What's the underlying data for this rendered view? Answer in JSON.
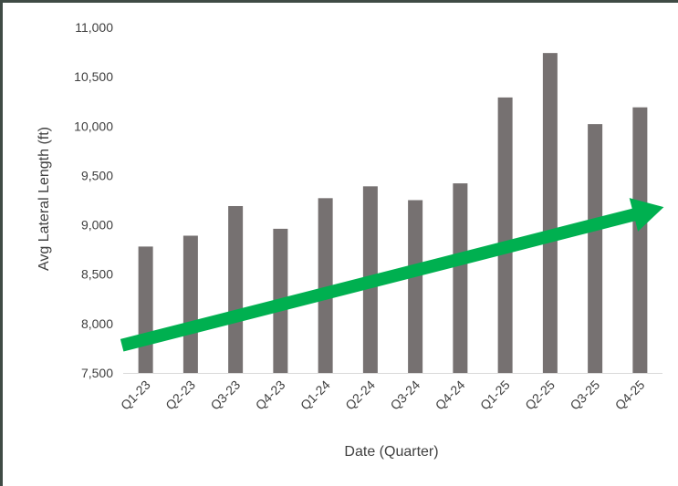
{
  "chart_data": {
    "type": "bar",
    "categories": [
      "Q1-23",
      "Q2-23",
      "Q3-23",
      "Q4-23",
      "Q1-24",
      "Q2-24",
      "Q3-24",
      "Q4-24",
      "Q1-25",
      "Q2-25",
      "Q3-25",
      "Q4-25"
    ],
    "values": [
      8780,
      8890,
      9190,
      8960,
      9270,
      9390,
      9250,
      9420,
      10290,
      10740,
      10020,
      10190
    ],
    "xlabel": "Date (Quarter)",
    "ylabel": "Avg Lateral Length (ft)",
    "ylim": [
      7500,
      11000
    ],
    "yticks": [
      "7,500",
      "8,000",
      "8,500",
      "9,000",
      "9,500",
      "10,000",
      "10,500",
      "11,000"
    ],
    "grid": false,
    "bar_color": "#767171",
    "trend_arrow": {
      "color": "#00b050",
      "direction": "upward",
      "start_category": "Q1-23",
      "start_value": 7780,
      "end_category": "Q4-25",
      "end_value": 9180
    }
  }
}
